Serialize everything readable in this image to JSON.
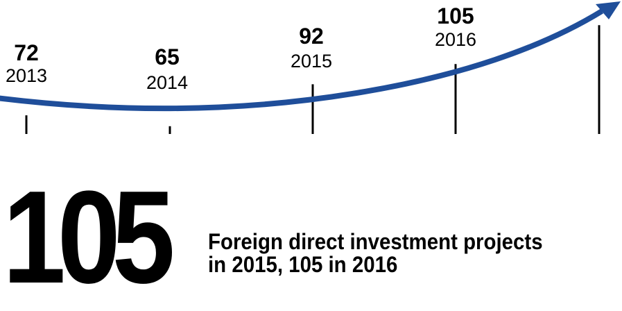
{
  "chart_data": {
    "type": "bar",
    "categories": [
      "2013",
      "2014",
      "2015",
      "2016",
      ""
    ],
    "values": [
      72,
      65,
      92,
      105,
      null
    ],
    "value_labels": [
      "72",
      "65",
      "92",
      "105",
      ""
    ],
    "ylim": [
      60,
      130
    ],
    "grid": false,
    "legend": "none",
    "colors": {
      "bars": "#000000",
      "arrow": "#1f4e9a",
      "text": "#000000"
    },
    "trend": "arrow"
  },
  "headline": {
    "number": "105",
    "caption_lines": [
      "Foreign direct investment projects",
      "in 2015, 105 in 2016"
    ]
  }
}
